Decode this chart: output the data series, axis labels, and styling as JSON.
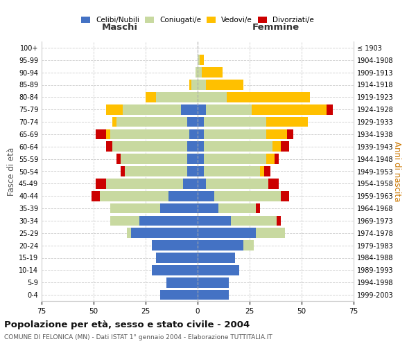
{
  "age_groups": [
    "0-4",
    "5-9",
    "10-14",
    "15-19",
    "20-24",
    "25-29",
    "30-34",
    "35-39",
    "40-44",
    "45-49",
    "50-54",
    "55-59",
    "60-64",
    "65-69",
    "70-74",
    "75-79",
    "80-84",
    "85-89",
    "90-94",
    "95-99",
    "100+"
  ],
  "birth_years": [
    "1999-2003",
    "1994-1998",
    "1989-1993",
    "1984-1988",
    "1979-1983",
    "1974-1978",
    "1969-1973",
    "1964-1968",
    "1959-1963",
    "1954-1958",
    "1949-1953",
    "1944-1948",
    "1939-1943",
    "1934-1938",
    "1929-1933",
    "1924-1928",
    "1919-1923",
    "1914-1918",
    "1909-1913",
    "1904-1908",
    "≤ 1903"
  ],
  "male": {
    "celibi": [
      18,
      15,
      22,
      20,
      22,
      32,
      28,
      18,
      14,
      7,
      5,
      5,
      5,
      4,
      5,
      8,
      0,
      0,
      0,
      0,
      0
    ],
    "coniugati": [
      0,
      0,
      0,
      0,
      0,
      2,
      14,
      24,
      33,
      37,
      30,
      32,
      36,
      38,
      34,
      28,
      20,
      3,
      1,
      0,
      0
    ],
    "vedovi": [
      0,
      0,
      0,
      0,
      0,
      0,
      0,
      0,
      0,
      0,
      0,
      0,
      0,
      2,
      2,
      8,
      5,
      1,
      0,
      0,
      0
    ],
    "divorziati": [
      0,
      0,
      0,
      0,
      0,
      0,
      0,
      0,
      4,
      5,
      2,
      2,
      3,
      5,
      0,
      0,
      0,
      0,
      0,
      0,
      0
    ]
  },
  "female": {
    "nubili": [
      15,
      15,
      20,
      18,
      22,
      28,
      16,
      10,
      8,
      4,
      3,
      3,
      3,
      3,
      3,
      4,
      0,
      0,
      0,
      0,
      0
    ],
    "coniugate": [
      0,
      0,
      0,
      0,
      5,
      14,
      22,
      18,
      32,
      30,
      27,
      30,
      33,
      30,
      30,
      22,
      14,
      4,
      2,
      1,
      0
    ],
    "vedove": [
      0,
      0,
      0,
      0,
      0,
      0,
      0,
      0,
      0,
      0,
      2,
      4,
      4,
      10,
      20,
      36,
      40,
      18,
      10,
      2,
      0
    ],
    "divorziate": [
      0,
      0,
      0,
      0,
      0,
      0,
      2,
      2,
      4,
      5,
      3,
      2,
      4,
      3,
      0,
      3,
      0,
      0,
      0,
      0,
      0
    ]
  },
  "colors": {
    "celibi": "#4472c4",
    "coniugati": "#c8d9a0",
    "vedovi": "#ffc000",
    "divorziati": "#cc0000"
  },
  "xlim": 75,
  "title": "Popolazione per età, sesso e stato civile - 2004",
  "subtitle": "COMUNE DI FELONICA (MN) - Dati ISTAT 1° gennaio 2004 - Elaborazione TUTTITALIA.IT",
  "ylabel_left": "Fasce di età",
  "ylabel_right": "Anni di nascita",
  "xlabel_left": "Maschi",
  "xlabel_right": "Femmine",
  "background": "#ffffff",
  "grid_color": "#cccccc"
}
